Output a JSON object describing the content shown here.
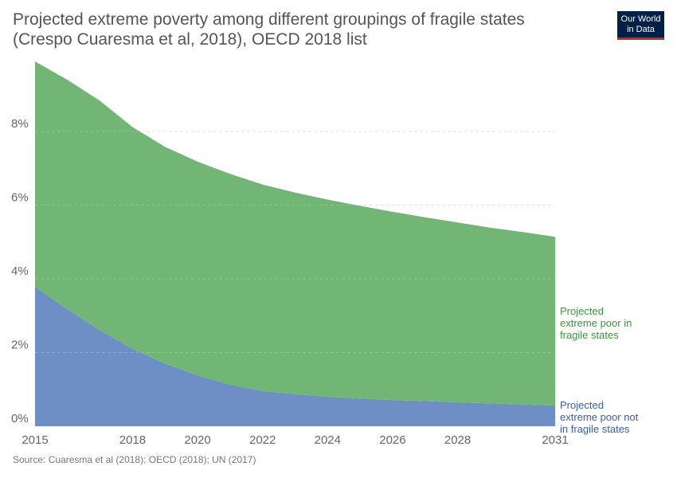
{
  "header": {
    "title": "Projected extreme poverty among different groupings of fragile states (Crespo Cuaresma et al, 2018), OECD 2018 list",
    "logo_line1": "Our World",
    "logo_line2": "in Data"
  },
  "footer": {
    "source": "Source: Cuaresma et al (2018); OECD (2018); UN (2017)"
  },
  "chart_data": {
    "type": "area",
    "stacked": true,
    "x": [
      2015,
      2016,
      2017,
      2018,
      2019,
      2020,
      2021,
      2022,
      2023,
      2024,
      2025,
      2026,
      2027,
      2028,
      2029,
      2030,
      2031
    ],
    "x_ticks": [
      "2015",
      "2018",
      "2020",
      "2022",
      "2024",
      "2026",
      "2028",
      "2031"
    ],
    "y_ticks": [
      "0%",
      "2%",
      "4%",
      "6%",
      "8%"
    ],
    "ylim": [
      0,
      10
    ],
    "grid": true,
    "series": [
      {
        "name": "Projected extreme poor not in fragile states",
        "label_lines": [
          "Projected",
          "extreme poor not",
          "in fragile states"
        ],
        "color": "#6d8fc6",
        "label_color": "#3a5fa0",
        "values": [
          3.78,
          3.17,
          2.6,
          2.1,
          1.7,
          1.38,
          1.13,
          0.96,
          0.87,
          0.8,
          0.75,
          0.71,
          0.68,
          0.65,
          0.62,
          0.59,
          0.56
        ]
      },
      {
        "name": "Projected extreme poor in fragile states",
        "label_lines": [
          "Projected",
          "extreme poor in",
          "fragile states"
        ],
        "color": "#71b675",
        "label_color": "#3c943f",
        "values": [
          6.12,
          6.23,
          6.23,
          6.02,
          5.88,
          5.8,
          5.72,
          5.6,
          5.47,
          5.35,
          5.23,
          5.11,
          4.99,
          4.88,
          4.77,
          4.68,
          4.58
        ]
      }
    ]
  }
}
